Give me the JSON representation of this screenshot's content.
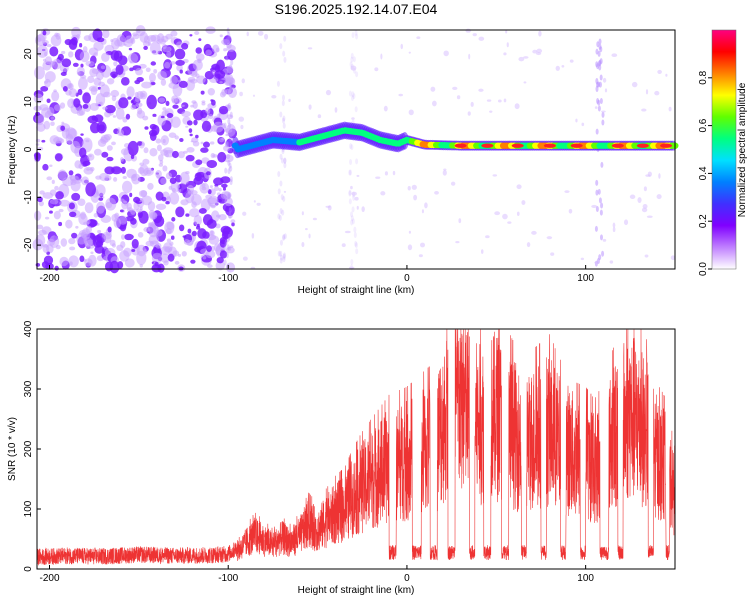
{
  "title": "S196.2025.192.14.07.E04",
  "colormap": {
    "label": "Normalized spectral amplitude",
    "ticks": [
      "0.0",
      "0.2",
      "0.4",
      "0.6",
      "0.8"
    ],
    "range": [
      0,
      1
    ],
    "stops": [
      "#ffffff",
      "#c080ff",
      "#8000ff",
      "#4030ff",
      "#0080ff",
      "#00e0ff",
      "#00ff80",
      "#60ff00",
      "#ffff00",
      "#ff8000",
      "#ff0000",
      "#ff0080"
    ]
  },
  "chart_data": [
    {
      "type": "heatmap",
      "xlabel": "Height of straight line (km)",
      "ylabel": "Frequency (Hz)",
      "xlim": [
        -207,
        150
      ],
      "ylim": [
        -25,
        25
      ],
      "xticks": [
        -200,
        -100,
        0,
        100
      ],
      "yticks": [
        -20,
        -10,
        0,
        10,
        20
      ],
      "ridge": [
        {
          "x": -95,
          "y": 0
        },
        {
          "x": -85,
          "y": 1
        },
        {
          "x": -75,
          "y": 2
        },
        {
          "x": -60,
          "y": 1.5
        },
        {
          "x": -45,
          "y": 3
        },
        {
          "x": -35,
          "y": 4
        },
        {
          "x": -25,
          "y": 3.5
        },
        {
          "x": -15,
          "y": 2
        },
        {
          "x": -5,
          "y": 1.2
        },
        {
          "x": 0,
          "y": 2
        },
        {
          "x": 10,
          "y": 1
        },
        {
          "x": 30,
          "y": 0.8
        },
        {
          "x": 60,
          "y": 0.8
        },
        {
          "x": 90,
          "y": 0.8
        },
        {
          "x": 110,
          "y": 0.8
        },
        {
          "x": 130,
          "y": 0.8
        },
        {
          "x": 150,
          "y": 0.8
        }
      ],
      "noise_region": [
        -207,
        -97
      ]
    },
    {
      "type": "line",
      "xlabel": "Height of straight line (km)",
      "ylabel": "SNR (10 * v/v)",
      "xlim": [
        -207,
        150
      ],
      "ylim": [
        0,
        400
      ],
      "xticks": [
        -200,
        -100,
        0,
        100
      ],
      "yticks": [
        0,
        100,
        200,
        300,
        400
      ],
      "color": "#ee3333",
      "series": [
        {
          "values": [
            [
              -207,
              20
            ],
            [
              -190,
              22
            ],
            [
              -170,
              21
            ],
            [
              -150,
              24
            ],
            [
              -130,
              22
            ],
            [
              -110,
              23
            ],
            [
              -100,
              25
            ],
            [
              -95,
              35
            ],
            [
              -90,
              55
            ],
            [
              -85,
              70
            ],
            [
              -80,
              60
            ],
            [
              -75,
              50
            ],
            [
              -70,
              65
            ],
            [
              -65,
              55
            ],
            [
              -60,
              70
            ],
            [
              -55,
              95
            ],
            [
              -50,
              80
            ],
            [
              -45,
              100
            ],
            [
              -40,
              115
            ],
            [
              -35,
              125
            ],
            [
              -30,
              150
            ],
            [
              -25,
              170
            ],
            [
              -20,
              185
            ],
            [
              -15,
              200
            ],
            [
              -10,
              215
            ],
            [
              -5,
              220
            ],
            [
              0,
              225
            ],
            [
              5,
              235
            ],
            [
              10,
              245
            ],
            [
              15,
              255
            ],
            [
              20,
              300
            ],
            [
              25,
              330
            ],
            [
              30,
              350
            ],
            [
              35,
              320
            ],
            [
              40,
              300
            ],
            [
              45,
              310
            ],
            [
              50,
              320
            ],
            [
              55,
              300
            ],
            [
              60,
              280
            ],
            [
              65,
              260
            ],
            [
              70,
              270
            ],
            [
              75,
              280
            ],
            [
              80,
              290
            ],
            [
              85,
              260
            ],
            [
              90,
              250
            ],
            [
              95,
              230
            ],
            [
              100,
              225
            ],
            [
              105,
              210
            ],
            [
              110,
              230
            ],
            [
              115,
              270
            ],
            [
              120,
              300
            ],
            [
              125,
              320
            ],
            [
              130,
              300
            ],
            [
              135,
              280
            ],
            [
              140,
              230
            ],
            [
              145,
              210
            ],
            [
              150,
              150
            ]
          ]
        }
      ],
      "dropouts": [
        [
          -10,
          -6
        ],
        [
          3,
          8
        ],
        [
          13,
          17
        ],
        [
          23,
          27
        ],
        [
          35,
          38
        ],
        [
          43,
          47
        ],
        [
          53,
          57
        ],
        [
          64,
          67
        ],
        [
          75,
          78
        ],
        [
          86,
          89
        ],
        [
          97,
          100
        ],
        [
          108,
          113
        ],
        [
          118,
          121
        ],
        [
          135,
          138
        ],
        [
          145,
          147
        ]
      ]
    }
  ]
}
